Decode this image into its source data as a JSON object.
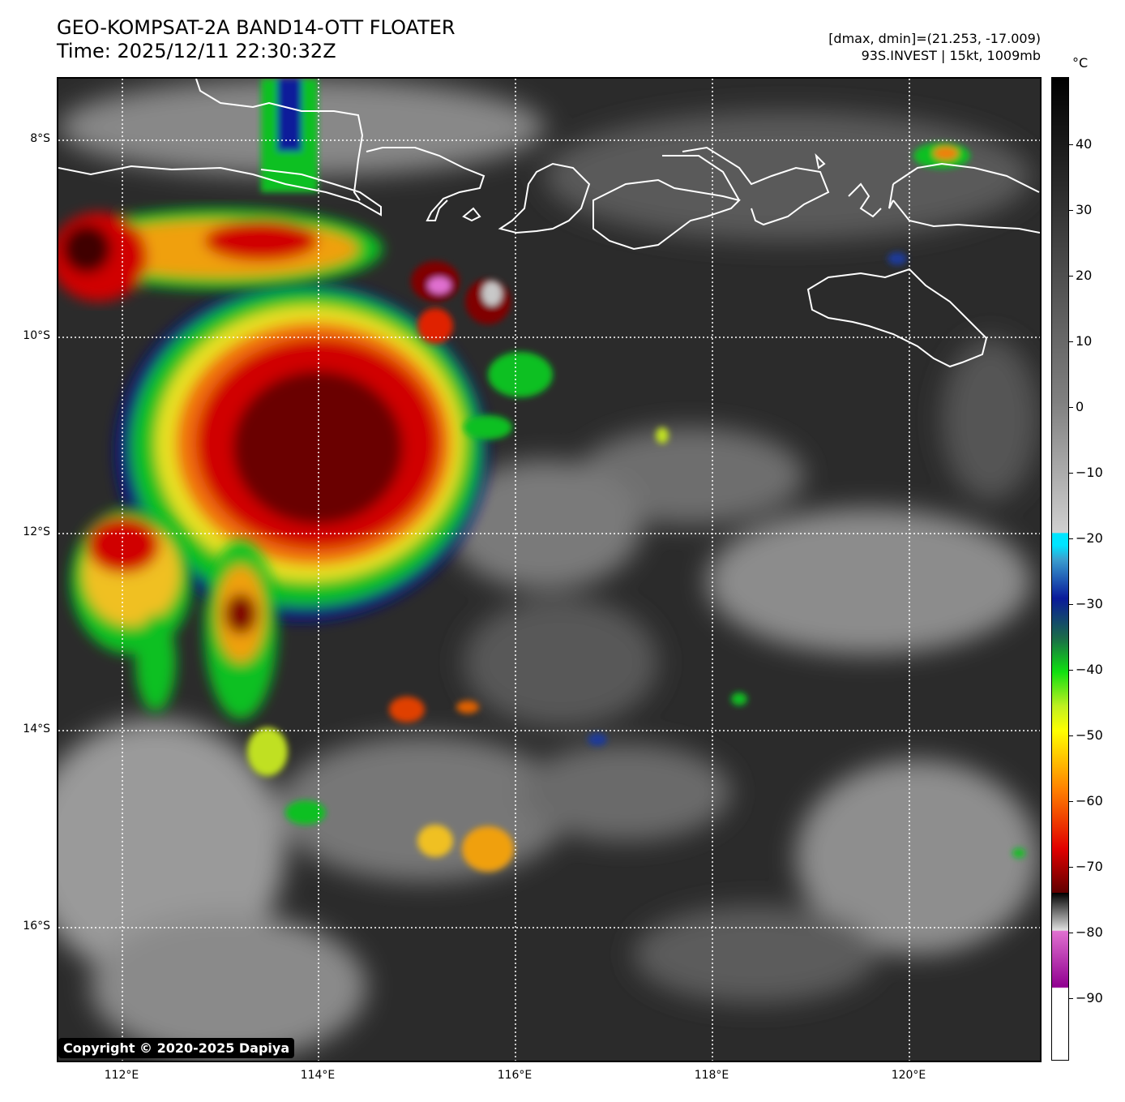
{
  "header": {
    "title": "GEO-KOMPSAT-2A BAND14-OTT FLOATER",
    "time": "Time: 2025/12/11 22:30:32Z",
    "dmax_dmin": "[dmax, dmin]=(21.253, -17.009)",
    "storm_info": "93S.INVEST | 15kt, 1009mb"
  },
  "map": {
    "lat_labels": [
      "8°S",
      "10°S",
      "12°S",
      "14°S",
      "16°S"
    ],
    "lon_labels": [
      "112°E",
      "114°E",
      "116°E",
      "118°E",
      "120°E"
    ],
    "gridline_style": "dotted white",
    "coastline_color": "#ffffff"
  },
  "colorbar": {
    "unit": "°C",
    "tick_labels": [
      "40",
      "30",
      "20",
      "10",
      "0",
      "−10",
      "−20",
      "−30",
      "−40",
      "−50",
      "−60",
      "−70",
      "−80",
      "−90"
    ],
    "colors": {
      "warm_top": "#000000",
      "mid_gray": "#808080",
      "light_gray": "#d0d0d0",
      "cyan": "#00e5ff",
      "blue": "#0a1a9a",
      "green": "#10e010",
      "yellow": "#ffff00",
      "orange": "#ff8000",
      "red": "#e00000",
      "dark_red": "#600000",
      "pink": "#e070d0",
      "purple": "#900090",
      "white": "#ffffff"
    }
  },
  "footer": {
    "copyright": "Copyright © 2020-2025 Dapiya"
  }
}
